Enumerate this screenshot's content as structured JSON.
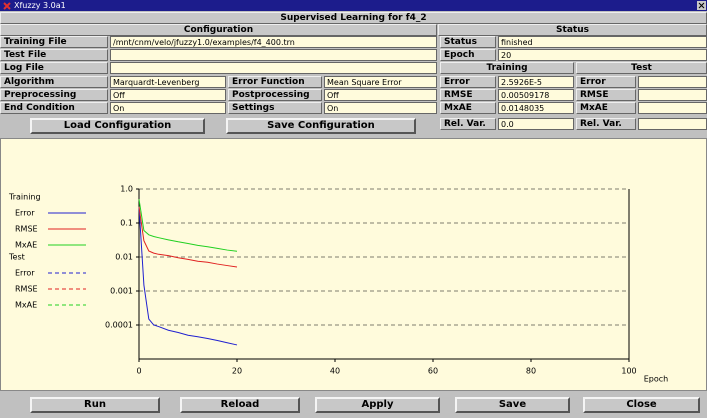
{
  "window": {
    "title": "Xfuzzy 3.0a1"
  },
  "header": "Supervised Learning for f4_2",
  "configuration": {
    "title": "Configuration",
    "rows": [
      {
        "label": "Training File",
        "value": "/mnt/cnm/velo/jfuzzy1.0/examples/f4_400.trn"
      },
      {
        "label": "Test File"
      },
      {
        "label": "Log File"
      }
    ],
    "pairs": [
      {
        "label": "Algorithm",
        "value": "Marquardt-Levenberg",
        "label2": "Error Function",
        "value2": "Mean Square Error"
      },
      {
        "label": "Preprocessing",
        "value": "Off",
        "label2": "Postprocessing",
        "value2": "Off"
      },
      {
        "label": "End Condition",
        "value": "On",
        "label2": "Settings",
        "value2": "On"
      }
    ],
    "buttons": [
      "Load Configuration",
      "Save Configuration"
    ]
  },
  "status": {
    "title": "Status",
    "status_label": "Status",
    "status": "finished",
    "epoch_label": "Epoch",
    "epoch": "20",
    "training": "Training",
    "test": "Test",
    "rows": [
      {
        "label": "Error",
        "training": "2.5926E-5",
        "test_label": "Error"
      },
      {
        "label": "RMSE",
        "training": "0.00509178",
        "test_label": "RMSE"
      },
      {
        "label": "MxAE",
        "training": "0.0148035",
        "test_label": "MxAE"
      },
      {
        "label": "Rel. Var.",
        "training": "0.0",
        "test_label": "Rel. Var."
      }
    ]
  },
  "chart_data": {
    "type": "line",
    "log_y": true,
    "grid": true,
    "x_label": "Epoch",
    "x": [
      0,
      1,
      2,
      3,
      4,
      6,
      8,
      10,
      12,
      14,
      16,
      18,
      20
    ],
    "xlim": [
      0,
      100
    ],
    "xticks": [
      0,
      20,
      40,
      60,
      80,
      100
    ],
    "ylim": [
      1e-05,
      1
    ],
    "yticks": [
      {
        "value": 1,
        "label": "1.0"
      },
      0.1,
      0.01,
      0.001,
      0.0001
    ],
    "legend_groups": [
      {
        "title": "Training",
        "series": [
          {
            "name": "Error",
            "color": "#2020d0",
            "values": [
              0.3,
              0.0015,
              0.00015,
              0.0001,
              9e-05,
              7e-05,
              6e-05,
              5e-05,
              4.5e-05,
              4e-05,
              3.5e-05,
              3e-05,
              2.59e-05
            ]
          },
          {
            "name": "RMSE",
            "color": "#e02020",
            "values": [
              0.3,
              0.03,
              0.015,
              0.013,
              0.012,
              0.011,
              0.0095,
              0.0085,
              0.0075,
              0.007,
              0.0062,
              0.0056,
              0.00509
            ]
          },
          {
            "name": "MxAE",
            "color": "#20d020",
            "values": [
              0.5,
              0.06,
              0.045,
              0.04,
              0.037,
              0.032,
              0.028,
              0.025,
              0.022,
              0.02,
              0.018,
              0.016,
              0.0148
            ]
          }
        ]
      },
      {
        "title": "Test",
        "series": [
          {
            "name": "Error",
            "color": "#2020d0",
            "dashed": true
          },
          {
            "name": "RMSE",
            "color": "#e02020",
            "dashed": true
          },
          {
            "name": "MxAE",
            "color": "#20d020",
            "dashed": true
          }
        ]
      }
    ]
  },
  "bottom_buttons": [
    "Run",
    "Reload",
    "Apply",
    "Save",
    "Close"
  ]
}
